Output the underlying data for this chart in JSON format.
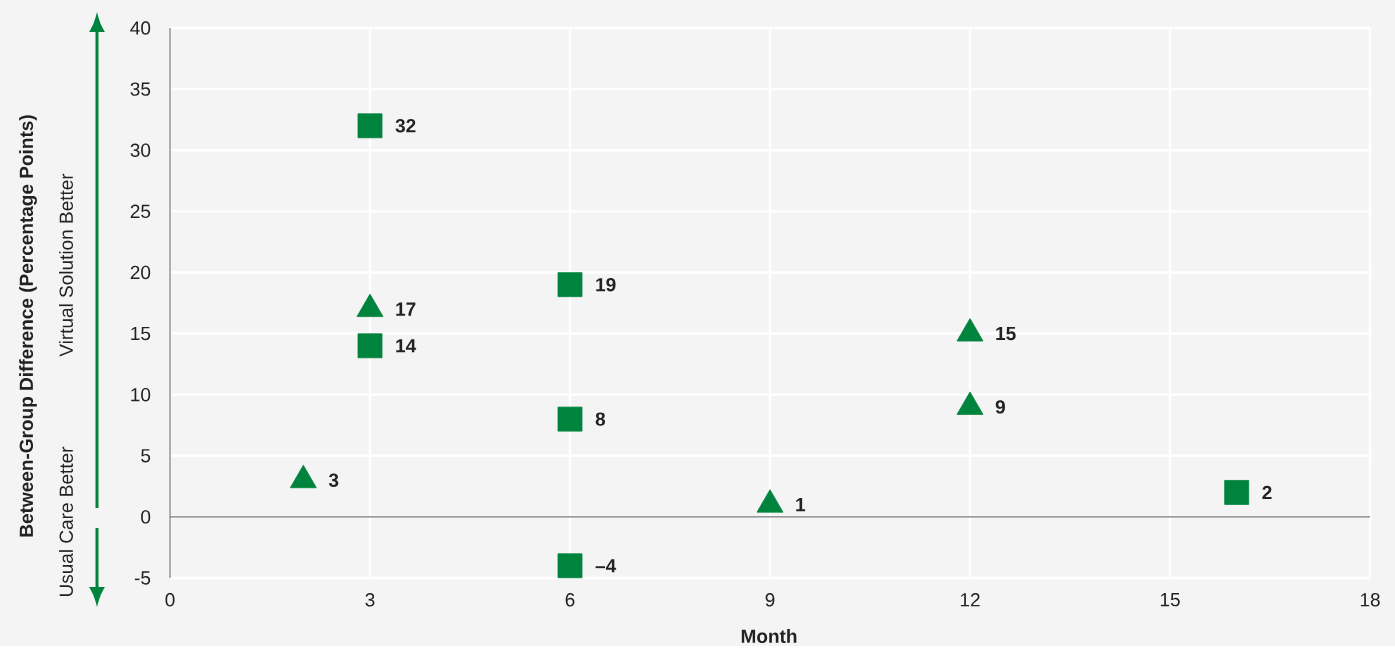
{
  "chart_data": {
    "type": "scatter",
    "xlabel": "Month",
    "ylabel": "Between-Group Difference (Percentage Points)",
    "annotations": [
      "Virtual Solution Better",
      "Usual Care Better"
    ],
    "xlim": [
      0,
      18
    ],
    "ylim": [
      -5,
      40
    ],
    "xticks": [
      0,
      3,
      6,
      9,
      12,
      15,
      18
    ],
    "yticks": [
      -5,
      0,
      5,
      10,
      15,
      20,
      25,
      30,
      35,
      40
    ],
    "grid": true,
    "series": [
      {
        "color": "#00843d",
        "marker": "square",
        "x": [
          3,
          3,
          6,
          6,
          6,
          16
        ],
        "values": [
          32,
          14,
          19,
          8,
          -4,
          2
        ],
        "value_labels": [
          "32",
          "14",
          "19",
          "8",
          "–4",
          "2"
        ]
      },
      {
        "color": "#00843d",
        "marker": "triangle",
        "x": [
          2,
          3,
          9,
          12,
          12
        ],
        "values": [
          3,
          17,
          1,
          15,
          9
        ],
        "value_labels": [
          "3",
          "17",
          "1",
          "15",
          "9"
        ]
      }
    ]
  }
}
